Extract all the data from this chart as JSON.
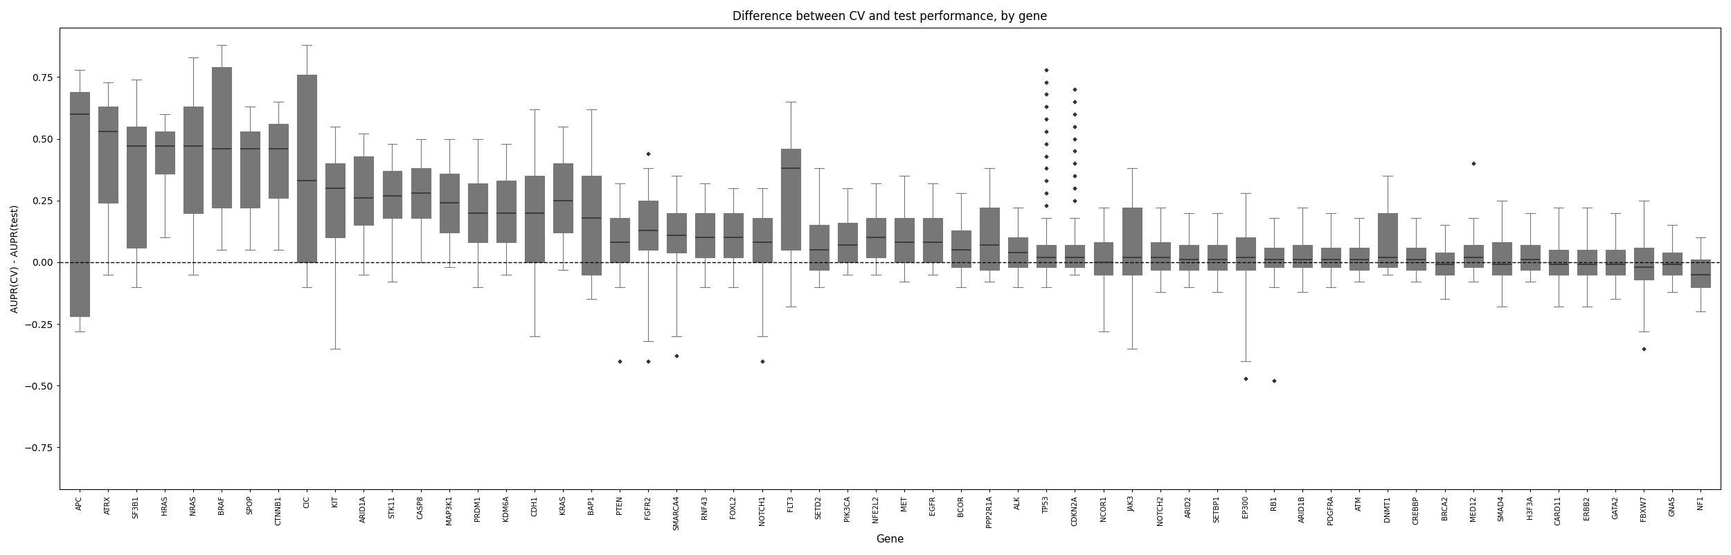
{
  "title": "Difference between CV and test performance, by gene",
  "xlabel": "Gene",
  "ylabel": "AUPR(CV) - AUPR(test)",
  "ylim": [
    -0.92,
    0.95
  ],
  "yticks": [
    -0.75,
    -0.5,
    -0.25,
    0.0,
    0.25,
    0.5,
    0.75
  ],
  "genes": [
    "APC",
    "ATRX",
    "SF3B1",
    "HRAS",
    "NRAS",
    "BRAF",
    "SPOP",
    "CTNNB1",
    "CIC",
    "KIT",
    "ARID1A",
    "STK11",
    "CASP8",
    "MAP3K1",
    "PRDM1",
    "KDM6A",
    "CDH1",
    "KRAS",
    "BAP1",
    "PTEN",
    "FGFR2",
    "SMARCA4",
    "RNF43",
    "FOXL2",
    "NOTCH1",
    "FLT3",
    "SETD2",
    "PIK3CA",
    "NFE2L2",
    "MET",
    "EGFR",
    "BCOR",
    "PPP2R1A",
    "ALK",
    "TP53",
    "CDKN2A",
    "NCOR1",
    "JAK3",
    "NOTCH2",
    "ARID2",
    "SETBP1",
    "EP300",
    "RB1",
    "ARID1B",
    "PDGFRA",
    "ATM",
    "DNMT1",
    "CREBBP",
    "BRCA2",
    "MED12",
    "SMAD4",
    "H3F3A",
    "CARD11",
    "ERBB2",
    "GATA2",
    "FBXW7",
    "GNAS",
    "NF1"
  ],
  "box_stats": {
    "APC": {
      "q1": -0.22,
      "median": 0.6,
      "q3": 0.69,
      "whislo": -0.28,
      "whishi": 0.78,
      "fliers": []
    },
    "ATRX": {
      "q1": 0.24,
      "median": 0.53,
      "q3": 0.63,
      "whislo": -0.05,
      "whishi": 0.73,
      "fliers": []
    },
    "SF3B1": {
      "q1": 0.06,
      "median": 0.47,
      "q3": 0.55,
      "whislo": -0.1,
      "whishi": 0.74,
      "fliers": []
    },
    "HRAS": {
      "q1": 0.36,
      "median": 0.47,
      "q3": 0.53,
      "whislo": 0.1,
      "whishi": 0.6,
      "fliers": []
    },
    "NRAS": {
      "q1": 0.2,
      "median": 0.47,
      "q3": 0.63,
      "whislo": -0.05,
      "whishi": 0.83,
      "fliers": []
    },
    "BRAF": {
      "q1": 0.22,
      "median": 0.46,
      "q3": 0.79,
      "whislo": 0.05,
      "whishi": 0.88,
      "fliers": []
    },
    "SPOP": {
      "q1": 0.22,
      "median": 0.46,
      "q3": 0.53,
      "whislo": 0.05,
      "whishi": 0.63,
      "fliers": []
    },
    "CTNNB1": {
      "q1": 0.26,
      "median": 0.46,
      "q3": 0.56,
      "whislo": 0.05,
      "whishi": 0.65,
      "fliers": []
    },
    "CIC": {
      "q1": 0.0,
      "median": 0.33,
      "q3": 0.76,
      "whislo": -0.1,
      "whishi": 0.88,
      "fliers": []
    },
    "KIT": {
      "q1": 0.1,
      "median": 0.3,
      "q3": 0.4,
      "whislo": -0.35,
      "whishi": 0.55,
      "fliers": []
    },
    "ARID1A": {
      "q1": 0.15,
      "median": 0.26,
      "q3": 0.43,
      "whislo": -0.05,
      "whishi": 0.52,
      "fliers": []
    },
    "STK11": {
      "q1": 0.18,
      "median": 0.27,
      "q3": 0.37,
      "whislo": -0.08,
      "whishi": 0.48,
      "fliers": []
    },
    "CASP8": {
      "q1": 0.18,
      "median": 0.28,
      "q3": 0.38,
      "whislo": 0.0,
      "whishi": 0.5,
      "fliers": []
    },
    "MAP3K1": {
      "q1": 0.12,
      "median": 0.24,
      "q3": 0.36,
      "whislo": -0.02,
      "whishi": 0.5,
      "fliers": []
    },
    "PRDM1": {
      "q1": 0.08,
      "median": 0.2,
      "q3": 0.32,
      "whislo": -0.1,
      "whishi": 0.5,
      "fliers": []
    },
    "KDM6A": {
      "q1": 0.08,
      "median": 0.2,
      "q3": 0.33,
      "whislo": -0.05,
      "whishi": 0.48,
      "fliers": []
    },
    "CDH1": {
      "q1": 0.0,
      "median": 0.2,
      "q3": 0.35,
      "whislo": -0.3,
      "whishi": 0.62,
      "fliers": []
    },
    "KRAS": {
      "q1": 0.12,
      "median": 0.25,
      "q3": 0.4,
      "whislo": -0.03,
      "whishi": 0.55,
      "fliers": []
    },
    "BAP1": {
      "q1": -0.05,
      "median": 0.18,
      "q3": 0.35,
      "whislo": -0.15,
      "whishi": 0.62,
      "fliers": []
    },
    "PTEN": {
      "q1": 0.0,
      "median": 0.08,
      "q3": 0.18,
      "whislo": -0.1,
      "whishi": 0.32,
      "fliers": [
        -0.4
      ]
    },
    "FGFR2": {
      "q1": 0.05,
      "median": 0.13,
      "q3": 0.25,
      "whislo": -0.32,
      "whishi": 0.38,
      "fliers": [
        -0.4,
        0.44
      ]
    },
    "SMARCA4": {
      "q1": 0.04,
      "median": 0.11,
      "q3": 0.2,
      "whislo": -0.3,
      "whishi": 0.35,
      "fliers": [
        -0.38
      ]
    },
    "RNF43": {
      "q1": 0.02,
      "median": 0.1,
      "q3": 0.2,
      "whislo": -0.1,
      "whishi": 0.32,
      "fliers": []
    },
    "FOXL2": {
      "q1": 0.02,
      "median": 0.1,
      "q3": 0.2,
      "whislo": -0.1,
      "whishi": 0.3,
      "fliers": []
    },
    "NOTCH1": {
      "q1": 0.0,
      "median": 0.08,
      "q3": 0.18,
      "whislo": -0.3,
      "whishi": 0.3,
      "fliers": [
        -0.4
      ]
    },
    "FLT3": {
      "q1": 0.05,
      "median": 0.38,
      "q3": 0.46,
      "whislo": -0.18,
      "whishi": 0.65,
      "fliers": []
    },
    "SETD2": {
      "q1": -0.03,
      "median": 0.05,
      "q3": 0.15,
      "whislo": -0.1,
      "whishi": 0.38,
      "fliers": []
    },
    "PIK3CA": {
      "q1": 0.0,
      "median": 0.07,
      "q3": 0.16,
      "whislo": -0.05,
      "whishi": 0.3,
      "fliers": []
    },
    "NFE2L2": {
      "q1": 0.02,
      "median": 0.1,
      "q3": 0.18,
      "whislo": -0.05,
      "whishi": 0.32,
      "fliers": []
    },
    "MET": {
      "q1": 0.0,
      "median": 0.08,
      "q3": 0.18,
      "whislo": -0.08,
      "whishi": 0.35,
      "fliers": []
    },
    "EGFR": {
      "q1": 0.0,
      "median": 0.08,
      "q3": 0.18,
      "whislo": -0.05,
      "whishi": 0.32,
      "fliers": []
    },
    "BCOR": {
      "q1": -0.02,
      "median": 0.05,
      "q3": 0.13,
      "whislo": -0.1,
      "whishi": 0.28,
      "fliers": []
    },
    "PPP2R1A": {
      "q1": -0.03,
      "median": 0.07,
      "q3": 0.22,
      "whislo": -0.08,
      "whishi": 0.38,
      "fliers": []
    },
    "ALK": {
      "q1": -0.02,
      "median": 0.04,
      "q3": 0.1,
      "whislo": -0.1,
      "whishi": 0.22,
      "fliers": []
    },
    "TP53": {
      "q1": -0.02,
      "median": 0.02,
      "q3": 0.07,
      "whislo": -0.1,
      "whishi": 0.18,
      "fliers": [
        0.78,
        0.73,
        0.68,
        0.63,
        0.58,
        0.53,
        0.48,
        0.43,
        0.38,
        0.33,
        0.28,
        0.23
      ]
    },
    "CDKN2A": {
      "q1": -0.02,
      "median": 0.02,
      "q3": 0.07,
      "whislo": -0.05,
      "whishi": 0.18,
      "fliers": [
        0.7,
        0.65,
        0.6,
        0.55,
        0.5,
        0.45,
        0.4,
        0.35,
        0.3,
        0.25
      ]
    },
    "NCOR1": {
      "q1": -0.05,
      "median": 0.0,
      "q3": 0.08,
      "whislo": -0.28,
      "whishi": 0.22,
      "fliers": []
    },
    "JAK3": {
      "q1": -0.05,
      "median": 0.02,
      "q3": 0.22,
      "whislo": -0.35,
      "whishi": 0.38,
      "fliers": []
    },
    "NOTCH2": {
      "q1": -0.03,
      "median": 0.02,
      "q3": 0.08,
      "whislo": -0.12,
      "whishi": 0.22,
      "fliers": []
    },
    "ARID2": {
      "q1": -0.03,
      "median": 0.01,
      "q3": 0.07,
      "whislo": -0.1,
      "whishi": 0.2,
      "fliers": []
    },
    "SETBP1": {
      "q1": -0.03,
      "median": 0.01,
      "q3": 0.07,
      "whislo": -0.12,
      "whishi": 0.2,
      "fliers": []
    },
    "EP300": {
      "q1": -0.03,
      "median": 0.02,
      "q3": 0.1,
      "whislo": -0.4,
      "whishi": 0.28,
      "fliers": [
        -0.47
      ]
    },
    "RB1": {
      "q1": -0.02,
      "median": 0.01,
      "q3": 0.06,
      "whislo": -0.1,
      "whishi": 0.18,
      "fliers": [
        -0.48
      ]
    },
    "ARID1B": {
      "q1": -0.02,
      "median": 0.01,
      "q3": 0.07,
      "whislo": -0.12,
      "whishi": 0.22,
      "fliers": []
    },
    "PDGFRA": {
      "q1": -0.02,
      "median": 0.01,
      "q3": 0.06,
      "whislo": -0.1,
      "whishi": 0.2,
      "fliers": []
    },
    "ATM": {
      "q1": -0.03,
      "median": 0.01,
      "q3": 0.06,
      "whislo": -0.08,
      "whishi": 0.18,
      "fliers": []
    },
    "DNMT1": {
      "q1": -0.02,
      "median": 0.02,
      "q3": 0.2,
      "whislo": -0.05,
      "whishi": 0.35,
      "fliers": []
    },
    "CREBBP": {
      "q1": -0.03,
      "median": 0.01,
      "q3": 0.06,
      "whislo": -0.08,
      "whishi": 0.18,
      "fliers": []
    },
    "BRCA2": {
      "q1": -0.05,
      "median": -0.01,
      "q3": 0.04,
      "whislo": -0.15,
      "whishi": 0.15,
      "fliers": []
    },
    "MED12": {
      "q1": -0.02,
      "median": 0.02,
      "q3": 0.07,
      "whislo": -0.08,
      "whishi": 0.18,
      "fliers": [
        0.4
      ]
    },
    "SMAD4": {
      "q1": -0.05,
      "median": -0.01,
      "q3": 0.08,
      "whislo": -0.18,
      "whishi": 0.25,
      "fliers": []
    },
    "H3F3A": {
      "q1": -0.03,
      "median": 0.01,
      "q3": 0.07,
      "whislo": -0.08,
      "whishi": 0.2,
      "fliers": []
    },
    "CARD11": {
      "q1": -0.05,
      "median": -0.01,
      "q3": 0.05,
      "whislo": -0.18,
      "whishi": 0.22,
      "fliers": []
    },
    "ERBB2": {
      "q1": -0.05,
      "median": -0.01,
      "q3": 0.05,
      "whislo": -0.18,
      "whishi": 0.22,
      "fliers": []
    },
    "GATA2": {
      "q1": -0.05,
      "median": -0.01,
      "q3": 0.05,
      "whislo": -0.15,
      "whishi": 0.2,
      "fliers": []
    },
    "FBXW7": {
      "q1": -0.07,
      "median": -0.02,
      "q3": 0.06,
      "whislo": -0.28,
      "whishi": 0.25,
      "fliers": [
        -0.35
      ]
    },
    "GNAS": {
      "q1": -0.05,
      "median": -0.01,
      "q3": 0.04,
      "whislo": -0.12,
      "whishi": 0.15,
      "fliers": []
    },
    "NF1": {
      "q1": -0.1,
      "median": -0.05,
      "q3": 0.01,
      "whislo": -0.2,
      "whishi": 0.1,
      "fliers": []
    }
  },
  "gene_colors": {
    "APC": "#8B1A1A",
    "ATRX": "#8B1C1C",
    "SF3B1": "#992222",
    "HRAS": "#9B2424",
    "NRAS": "#9D2626",
    "BRAF": "#A03030",
    "SPOP": "#B04040",
    "CTNNB1": "#B84848",
    "CIC": "#C86050",
    "KIT": "#D07060",
    "ARID1A": "#D67868",
    "STK11": "#DA8070",
    "CASP8": "#DC8878",
    "MAP3K1": "#DE9080",
    "PRDM1": "#E09888",
    "KDM6A": "#E2A090",
    "CDH1": "#E4A898",
    "KRAS": "#E6B0A0",
    "BAP1": "#E8B8A8",
    "PTEN": "#EAC0B0",
    "FGFR2": "#ECC8B8",
    "SMARCA4": "#EDD0C0",
    "RNF43": "#EED4C4",
    "FOXL2": "#EED8C8",
    "NOTCH1": "#F0DCCC",
    "FLT3": "#F0DDD0",
    "SETD2": "#F1DED2",
    "PIK3CA": "#F2E0D4",
    "NFE2L2": "#F2E1D5",
    "MET": "#F3E2D6",
    "EGFR": "#F3E3D7",
    "BCOR": "#F4E4D8",
    "PPP2R1A": "#F4E5D8",
    "ALK": "#F5E6D9",
    "TP53": "#F5E6DA",
    "CDKN2A": "#F5E7DA",
    "NCOR1": "#DDD0C8",
    "JAK3": "#DACDC5",
    "NOTCH2": "#D7CAC2",
    "ARID2": "#D4C7BF",
    "SETBP1": "#D1C4BC",
    "EP300": "#CEC1B9",
    "RB1": "#CBBEB6",
    "ARID1B": "#C8BBB3",
    "PDGFRA": "#C5B8B0",
    "ATM": "#C2B5AD",
    "DNMT1": "#BFB2AA",
    "CREBBP": "#BCAFA7",
    "BRCA2": "#B9ACA4",
    "MED12": "#B6A9A1",
    "SMAD4": "#B3A69E",
    "H3F3A": "#B0A39B",
    "CARD11": "#ADA098",
    "ERBB2": "#AA9D95",
    "GATA2": "#A79A92",
    "FBXW7": "#A4978F",
    "GNAS": "#A1948C",
    "NF1": "#B4BCC8"
  },
  "background_color": "#ffffff",
  "box_linecolor": "#777777",
  "median_linecolor": "#333333",
  "flier_color": "#333333"
}
